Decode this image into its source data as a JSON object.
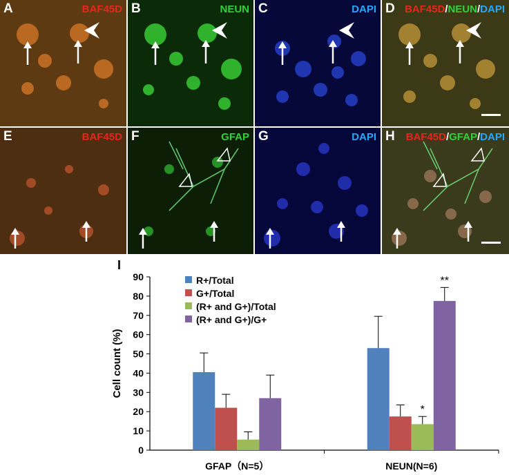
{
  "panels": [
    {
      "letter": "A",
      "label_parts": [
        {
          "text": "BAF45D",
          "color": "#e8251c"
        }
      ],
      "bg": "#5e3a12"
    },
    {
      "letter": "B",
      "label_parts": [
        {
          "text": "NEUN",
          "color": "#2fd23a"
        }
      ],
      "bg": "#0b2a08"
    },
    {
      "letter": "C",
      "label_parts": [
        {
          "text": "DAPI",
          "color": "#27a8ff"
        }
      ],
      "bg": "#06083a"
    },
    {
      "letter": "D",
      "label_parts": [
        {
          "text": "BAF45D",
          "color": "#e8251c"
        },
        {
          "text": "/",
          "color": "#ffffff"
        },
        {
          "text": "NEUN",
          "color": "#2fd23a"
        },
        {
          "text": "/",
          "color": "#ffffff"
        },
        {
          "text": "DAPI",
          "color": "#27a8ff"
        }
      ],
      "bg": "#3c3a16"
    },
    {
      "letter": "E",
      "label_parts": [
        {
          "text": "BAF45D",
          "color": "#e8251c"
        }
      ],
      "bg": "#4e2e10"
    },
    {
      "letter": "F",
      "label_parts": [
        {
          "text": "GFAP",
          "color": "#2fd23a"
        }
      ],
      "bg": "#0c1e06"
    },
    {
      "letter": "G",
      "label_parts": [
        {
          "text": "DAPI",
          "color": "#27a8ff"
        }
      ],
      "bg": "#05073a"
    },
    {
      "letter": "H",
      "label_parts": [
        {
          "text": "BAF45D",
          "color": "#e8251c"
        },
        {
          "text": "/",
          "color": "#ffffff"
        },
        {
          "text": "GFAP",
          "color": "#2fd23a"
        },
        {
          "text": "/",
          "color": "#ffffff"
        },
        {
          "text": "DAPI",
          "color": "#27a8ff"
        }
      ],
      "bg": "#3a3a1c"
    }
  ],
  "chart_label": "I",
  "chart_data": {
    "type": "bar",
    "categories": [
      "GFAP（N=5）",
      "NEUN(N=6)"
    ],
    "series": [
      {
        "name": "R+/Total",
        "color": "#4f81bd",
        "values": [
          40.5,
          53
        ],
        "errors": [
          10,
          16.5
        ]
      },
      {
        "name": "G+/Total",
        "color": "#c0504d",
        "values": [
          22,
          17.5
        ],
        "errors": [
          7,
          6
        ]
      },
      {
        "name": "(R+ and G+)/Total",
        "color": "#9bbb59",
        "values": [
          5.5,
          13.5
        ],
        "errors": [
          4,
          4
        ]
      },
      {
        "name": "(R+ and G+)/G+",
        "color": "#8064a2",
        "values": [
          27,
          77.5
        ],
        "errors": [
          12,
          7
        ]
      }
    ],
    "significance": [
      {
        "category": 1,
        "series": 2,
        "text": "*"
      },
      {
        "category": 1,
        "series": 3,
        "text": "**"
      }
    ],
    "ylabel": "Cell count (%)",
    "ylim": [
      0,
      90
    ],
    "yticks": [
      0,
      10,
      20,
      30,
      40,
      50,
      60,
      70,
      80,
      90
    ],
    "legend_position": "top-left",
    "grid": false
  }
}
